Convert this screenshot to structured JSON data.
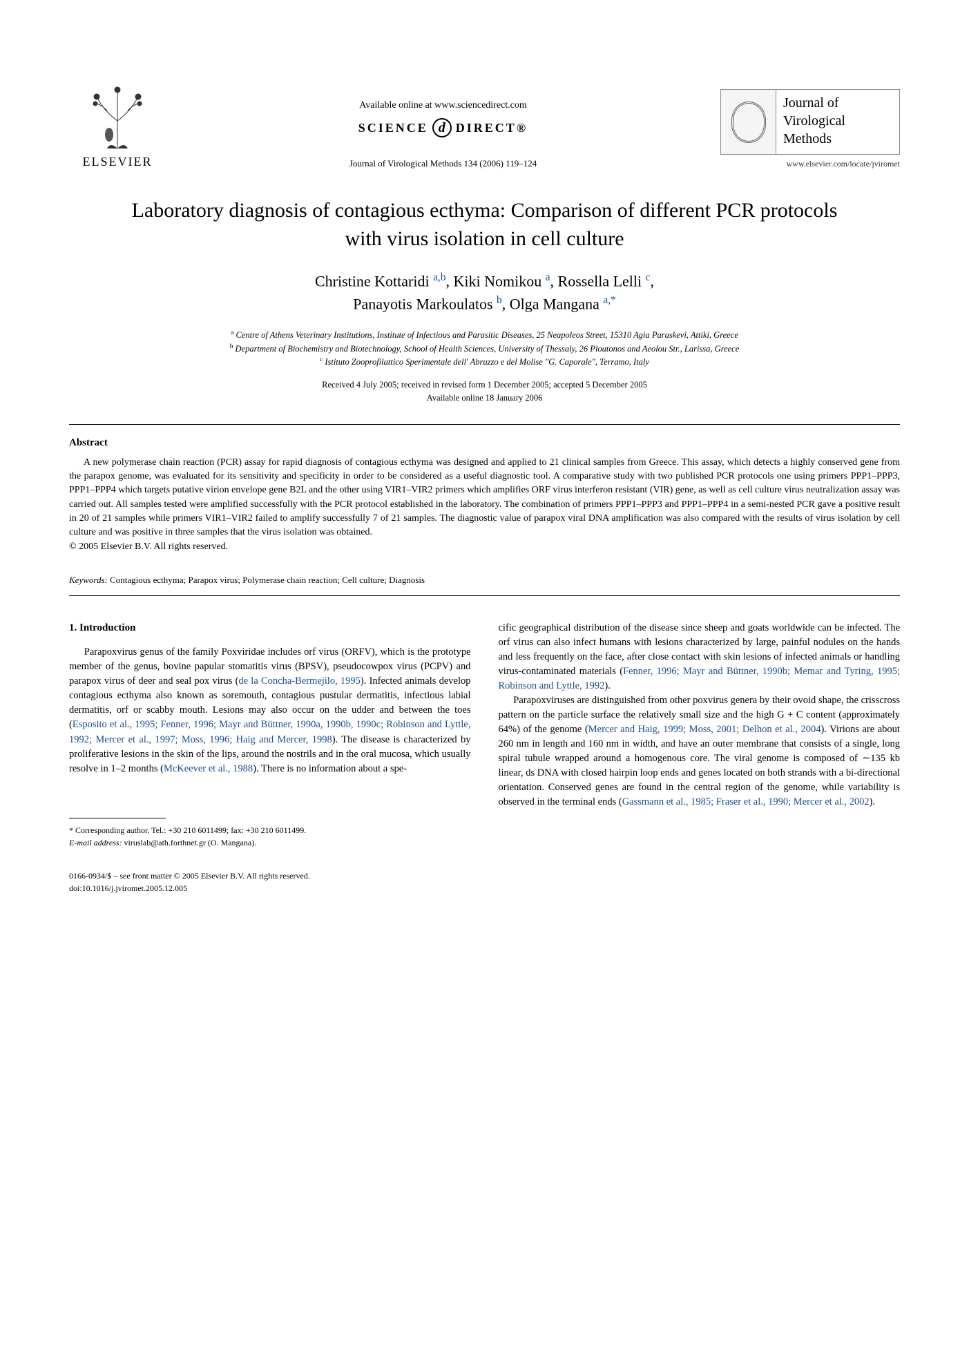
{
  "header": {
    "available_online": "Available online at www.sciencedirect.com",
    "science_direct_left": "SCIENCE",
    "science_direct_right": "DIRECT®",
    "citation": "Journal of Virological Methods 134 (2006) 119–124",
    "elsevier_label": "ELSEVIER",
    "journal_name_l1": "Journal of",
    "journal_name_l2": "Virological",
    "journal_name_l3": "Methods",
    "journal_url": "www.elsevier.com/locate/jviromet"
  },
  "article": {
    "title": "Laboratory diagnosis of contagious ecthyma: Comparison of different PCR protocols with virus isolation in cell culture",
    "authors_line1_html": "Christine Kottaridi <span class='sup'>a,b</span>, Kiki Nomikou <span class='sup'>a</span>, Rossella Lelli <span class='sup'>c</span>,",
    "authors_line2_html": "Panayotis Markoulatos <span class='sup'>b</span>, Olga Mangana <span class='sup'>a,*</span>",
    "aff_a": "Centre of Athens Veterinary Institutions, Institute of Infectious and Parasitic Diseases, 25 Neapoleos Street, 15310 Agia Paraskevi, Attiki, Greece",
    "aff_b": "Department of Biochemistry and Biotechnology, School of Health Sciences, University of Thessaly, 26 Ploutonos and Aeolou Str., Larissa, Greece",
    "aff_c": "Istituto Zooprofilattico Sperimentale dell' Abruzzo e del Molise \"G. Caporale\", Terramo, Italy",
    "dates_l1": "Received 4 July 2005; received in revised form 1 December 2005; accepted 5 December 2005",
    "dates_l2": "Available online 18 January 2006"
  },
  "abstract": {
    "heading": "Abstract",
    "text": "A new polymerase chain reaction (PCR) assay for rapid diagnosis of contagious ecthyma was designed and applied to 21 clinical samples from Greece. This assay, which detects a highly conserved gene from the parapox genome, was evaluated for its sensitivity and specificity in order to be considered as a useful diagnostic tool. A comparative study with two published PCR protocols one using primers PPP1–PPP3, PPP1–PPP4 which targets putative virion envelope gene B2L and the other using VIR1–VIR2 primers which amplifies ORF virus interferon resistant (VIR) gene, as well as cell culture virus neutralization assay was carried out. All samples tested were amplified successfully with the PCR protocol established in the laboratory. The combination of primers PPP1–PPP3 and PPP1–PPP4 in a semi-nested PCR gave a positive result in 20 of 21 samples while primers VIR1–VIR2 failed to amplify successfully 7 of 21 samples. The diagnostic value of parapox viral DNA amplification was also compared with the results of virus isolation by cell culture and was positive in three samples that the virus isolation was obtained.",
    "copyright": "© 2005 Elsevier B.V. All rights reserved."
  },
  "keywords": {
    "label": "Keywords:",
    "text": "Contagious ecthyma; Parapox virus; Polymerase chain reaction; Cell culture; Diagnosis"
  },
  "body": {
    "section_heading": "1. Introduction",
    "left_p1_html": "Parapoxvirus genus of the family Poxviridae includes orf virus (ORFV), which is the prototype member of the genus, bovine papular stomatitis virus (BPSV), pseudocowpox virus (PCPV) and parapox virus of deer and seal pox virus (<span class='cite'>de la Concha-Bermejilo, 1995</span>). Infected animals develop contagious ecthyma also known as soremouth, contagious pustular dermatitis, infectious labial dermatitis, orf or scabby mouth. Lesions may also occur on the udder and between the toes (<span class='cite'>Esposito et al., 1995; Fenner, 1996; Mayr and Büttner, 1990a, 1990b, 1990c; Robinson and Lyttle, 1992; Mercer et al., 1997; Moss, 1996; Haig and Mercer, 1998</span>). The disease is characterized by proliferative lesions in the skin of the lips, around the nostrils and in the oral mucosa, which usually resolve in 1–2 months (<span class='cite'>McKeever et al., 1988</span>). There is no information about a spe-",
    "right_p1_html": "cific geographical distribution of the disease since sheep and goats worldwide can be infected. The orf virus can also infect humans with lesions characterized by large, painful nodules on the hands and less frequently on the face, after close contact with skin lesions of infected animals or handling virus-contaminated materials (<span class='cite'>Fenner, 1996; Mayr and Büttner, 1990b; Memar and Tyring, 1995; Robinson and Lyttle, 1992</span>).",
    "right_p2_html": "Parapoxviruses are distinguished from other poxvirus genera by their ovoid shape, the crisscross pattern on the particle surface the relatively small size and the high G + C content (approximately 64%) of the genome (<span class='cite'>Mercer and Haig, 1999; Moss, 2001; Delhon et al., 2004</span>). Virions are about 260 nm in length and 160 nm in width, and have an outer membrane that consists of a single, long spiral tubule wrapped around a homogenous core. The viral genome is composed of ∼135 kb linear, ds DNA with closed hairpin loop ends and genes located on both strands with a bi-directional orientation. Conserved genes are found in the central region of the genome, while variability is observed in the terminal ends (<span class='cite'>Gassmann et al., 1985; Fraser et al., 1990; Mercer et al., 2002</span>)."
  },
  "footnote": {
    "corr": "* Corresponding author. Tel.: +30 210 6011499; fax: +30 210 6011499.",
    "email_label": "E-mail address:",
    "email": "viruslab@ath.forthnet.gr (O. Mangana)."
  },
  "footer": {
    "line1": "0166-0934/$ – see front matter © 2005 Elsevier B.V. All rights reserved.",
    "line2": "doi:10.1016/j.jviromet.2005.12.005"
  },
  "colors": {
    "link": "#1a4b8c",
    "text": "#000000",
    "rule": "#000000"
  }
}
